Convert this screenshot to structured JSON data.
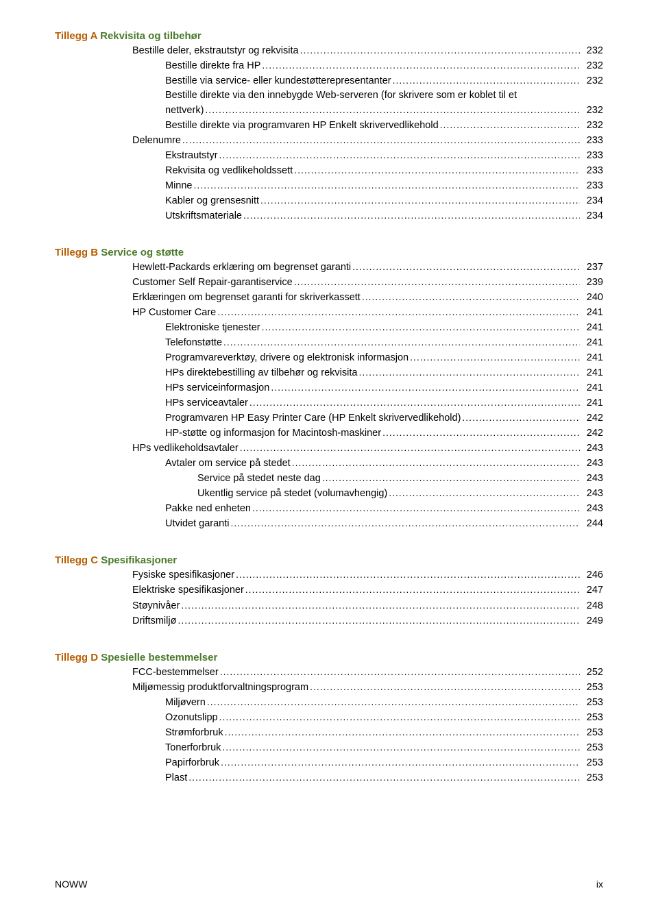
{
  "sections": [
    {
      "hdr_prefix": "Tillegg A",
      "hdr_title": "Rekvisita og tilbehør",
      "entries": [
        {
          "t": "Bestille deler, ekstrautstyr og rekvisita",
          "p": "232",
          "i": 0
        },
        {
          "t": "Bestille direkte fra HP",
          "p": "232",
          "i": 1
        },
        {
          "t": "Bestille via service- eller kundestøtterepresentanter",
          "p": "232",
          "i": 1
        },
        {
          "t": "Bestille direkte via den innebygde Web-serveren (for skrivere som er koblet til et",
          "i": 1,
          "no_dots": true
        },
        {
          "t": "nettverk)",
          "p": "232",
          "i": 1
        },
        {
          "t": "Bestille direkte via programvaren HP Enkelt skrivervedlikehold",
          "p": "232",
          "i": 1
        },
        {
          "t": "Delenumre",
          "p": "233",
          "i": 0
        },
        {
          "t": "Ekstrautstyr",
          "p": "233",
          "i": 1
        },
        {
          "t": "Rekvisita og vedlikeholdssett",
          "p": "233",
          "i": 1
        },
        {
          "t": "Minne",
          "p": "233",
          "i": 1
        },
        {
          "t": "Kabler og grensesnitt",
          "p": "234",
          "i": 1
        },
        {
          "t": "Utskriftsmateriale",
          "p": "234",
          "i": 1
        }
      ]
    },
    {
      "hdr_prefix": "Tillegg B",
      "hdr_title": "Service og støtte",
      "entries": [
        {
          "t": "Hewlett-Packards erklæring om begrenset garanti",
          "p": "237",
          "i": 0
        },
        {
          "t": "Customer Self Repair-garantiservice",
          "p": "239",
          "i": 0
        },
        {
          "t": "Erklæringen om begrenset garanti for skriverkassett",
          "p": "240",
          "i": 0
        },
        {
          "t": "HP Customer Care",
          "p": "241",
          "i": 0
        },
        {
          "t": "Elektroniske tjenester",
          "p": "241",
          "i": 1
        },
        {
          "t": "Telefonstøtte",
          "p": "241",
          "i": 1
        },
        {
          "t": "Programvareverktøy, drivere og elektronisk informasjon",
          "p": "241",
          "i": 1
        },
        {
          "t": "HPs direktebestilling av tilbehør og rekvisita",
          "p": "241",
          "i": 1
        },
        {
          "t": "HPs serviceinformasjon",
          "p": "241",
          "i": 1
        },
        {
          "t": "HPs serviceavtaler",
          "p": "241",
          "i": 1
        },
        {
          "t": "Programvaren HP Easy Printer Care (HP Enkelt skrivervedlikehold)",
          "p": "242",
          "i": 1
        },
        {
          "t": "HP-støtte og informasjon for Macintosh-maskiner",
          "p": "242",
          "i": 1
        },
        {
          "t": "HPs vedlikeholdsavtaler",
          "p": "243",
          "i": 0
        },
        {
          "t": "Avtaler om service på stedet",
          "p": "243",
          "i": 1
        },
        {
          "t": "Service på stedet neste dag",
          "p": "243",
          "i": 2
        },
        {
          "t": "Ukentlig service på stedet (volumavhengig)",
          "p": "243",
          "i": 2
        },
        {
          "t": "Pakke ned enheten",
          "p": "243",
          "i": 1
        },
        {
          "t": "Utvidet garanti",
          "p": "244",
          "i": 1
        }
      ]
    },
    {
      "hdr_prefix": "Tillegg C",
      "hdr_title": "Spesifikasjoner",
      "entries": [
        {
          "t": "Fysiske spesifikasjoner",
          "p": "246",
          "i": 0
        },
        {
          "t": "Elektriske spesifikasjoner",
          "p": "247",
          "i": 0
        },
        {
          "t": "Støynivåer",
          "p": "248",
          "i": 0
        },
        {
          "t": "Driftsmiljø",
          "p": "249",
          "i": 0
        }
      ]
    },
    {
      "hdr_prefix": "Tillegg D",
      "hdr_title": "Spesielle bestemmelser",
      "entries": [
        {
          "t": "FCC-bestemmelser",
          "p": "252",
          "i": 0
        },
        {
          "t": "Miljømessig produktforvaltningsprogram",
          "p": "253",
          "i": 0
        },
        {
          "t": "Miljøvern",
          "p": "253",
          "i": 1
        },
        {
          "t": "Ozonutslipp",
          "p": "253",
          "i": 1
        },
        {
          "t": "Strømforbruk",
          "p": "253",
          "i": 1
        },
        {
          "t": "Tonerforbruk",
          "p": "253",
          "i": 1
        },
        {
          "t": "Papirforbruk",
          "p": "253",
          "i": 1
        },
        {
          "t": "Plast",
          "p": "253",
          "i": 1
        }
      ]
    }
  ],
  "footer_left": "NOWW",
  "footer_right": "ix"
}
